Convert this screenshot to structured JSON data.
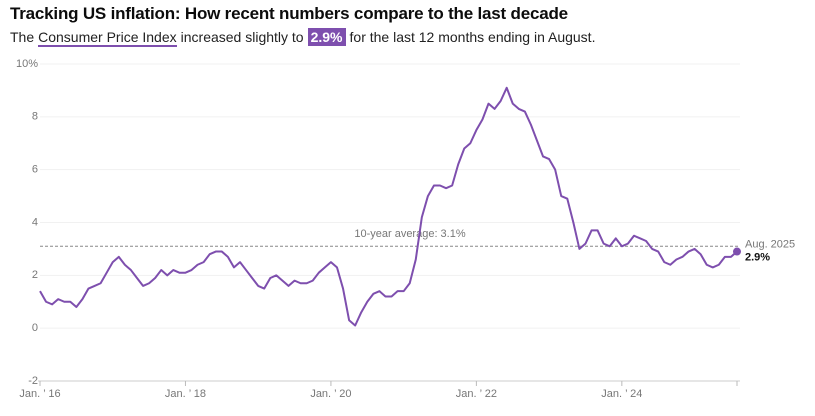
{
  "chart_data": {
    "type": "line",
    "title": "Tracking US inflation: How recent numbers compare to the last decade",
    "subtitle": {
      "before": "The",
      "link": "Consumer Price Index",
      "middle": "increased slightly to",
      "highlight": "2.9%",
      "after": "for the last 12 months ending in August."
    },
    "categories": [
      "Jan. ’ 16",
      null,
      null,
      null,
      null,
      null,
      null,
      null,
      null,
      null,
      null,
      null,
      null,
      null,
      null,
      null,
      null,
      null,
      null,
      null,
      null,
      null,
      null,
      null,
      "Jan. ’ 18",
      null,
      null,
      null,
      null,
      null,
      null,
      null,
      null,
      null,
      null,
      null,
      null,
      null,
      null,
      null,
      null,
      null,
      null,
      null,
      null,
      null,
      null,
      null,
      "Jan. ’ 20",
      null,
      null,
      null,
      null,
      null,
      null,
      null,
      null,
      null,
      null,
      null,
      null,
      null,
      null,
      null,
      null,
      null,
      null,
      null,
      null,
      null,
      null,
      null,
      "Jan. ’ 22",
      null,
      null,
      null,
      null,
      null,
      null,
      null,
      null,
      null,
      null,
      null,
      null,
      null,
      null,
      null,
      null,
      null,
      null,
      null,
      null,
      null,
      null,
      null,
      "Jan. ’ 24",
      null,
      null,
      null,
      null,
      null,
      null,
      null,
      null,
      null,
      null,
      null,
      null,
      null,
      null,
      null,
      null,
      null,
      null,
      null
    ],
    "series": [
      {
        "color": "#7e4fae",
        "values": [
          1.4,
          1.0,
          0.9,
          1.1,
          1.0,
          1.0,
          0.8,
          1.1,
          1.5,
          1.6,
          1.7,
          2.1,
          2.5,
          2.7,
          2.4,
          2.2,
          1.9,
          1.6,
          1.7,
          1.9,
          2.2,
          2.0,
          2.2,
          2.1,
          2.1,
          2.2,
          2.4,
          2.5,
          2.8,
          2.9,
          2.9,
          2.7,
          2.3,
          2.5,
          2.2,
          1.9,
          1.6,
          1.5,
          1.9,
          2.0,
          1.8,
          1.6,
          1.8,
          1.7,
          1.7,
          1.8,
          2.1,
          2.3,
          2.5,
          2.3,
          1.5,
          0.3,
          0.1,
          0.6,
          1.0,
          1.3,
          1.4,
          1.2,
          1.2,
          1.4,
          1.4,
          1.7,
          2.6,
          4.2,
          5.0,
          5.4,
          5.4,
          5.3,
          5.4,
          6.2,
          6.8,
          7.0,
          7.5,
          7.9,
          8.5,
          8.3,
          8.6,
          9.1,
          8.5,
          8.3,
          8.2,
          7.7,
          7.1,
          6.5,
          6.4,
          6.0,
          5.0,
          4.9,
          4.0,
          3.0,
          3.2,
          3.7,
          3.7,
          3.2,
          3.1,
          3.4,
          3.1,
          3.2,
          3.5,
          3.4,
          3.3,
          3.0,
          2.9,
          2.5,
          2.4,
          2.6,
          2.7,
          2.9,
          3.0,
          2.8,
          2.4,
          2.3,
          2.4,
          2.7,
          2.7,
          2.9
        ],
        "value_labels": [
          null,
          null,
          null,
          null,
          null,
          null,
          null,
          null,
          null,
          null,
          null,
          null,
          null,
          null,
          null,
          null,
          null,
          null,
          null,
          null,
          null,
          null,
          null,
          null,
          null,
          null,
          null,
          null,
          null,
          null,
          null,
          null,
          null,
          null,
          null,
          null,
          null,
          null,
          null,
          null,
          null,
          null,
          null,
          null,
          null,
          null,
          null,
          null,
          null,
          null,
          null,
          null,
          null,
          null,
          null,
          null,
          null,
          null,
          null,
          null,
          null,
          null,
          null,
          null,
          null,
          null,
          null,
          null,
          null,
          null,
          null,
          null,
          null,
          null,
          null,
          null,
          null,
          null,
          null,
          null,
          null,
          null,
          null,
          null,
          null,
          null,
          null,
          null,
          null,
          null,
          null,
          null,
          null,
          null,
          null,
          null,
          null,
          null,
          null,
          null,
          null,
          null,
          null,
          null,
          null,
          null,
          null,
          null,
          null,
          null,
          null,
          null,
          null,
          null,
          null,
          "2.9%"
        ]
      }
    ],
    "end_label": "Aug. 2025",
    "average": {
      "value": 3.1,
      "label": "10-year average: 3.1%"
    },
    "ylim": [
      -2,
      10
    ],
    "yticks": [
      -2,
      0,
      2,
      4,
      6,
      8,
      {
        "value": 10,
        "label": "10%"
      }
    ],
    "grid": true
  }
}
